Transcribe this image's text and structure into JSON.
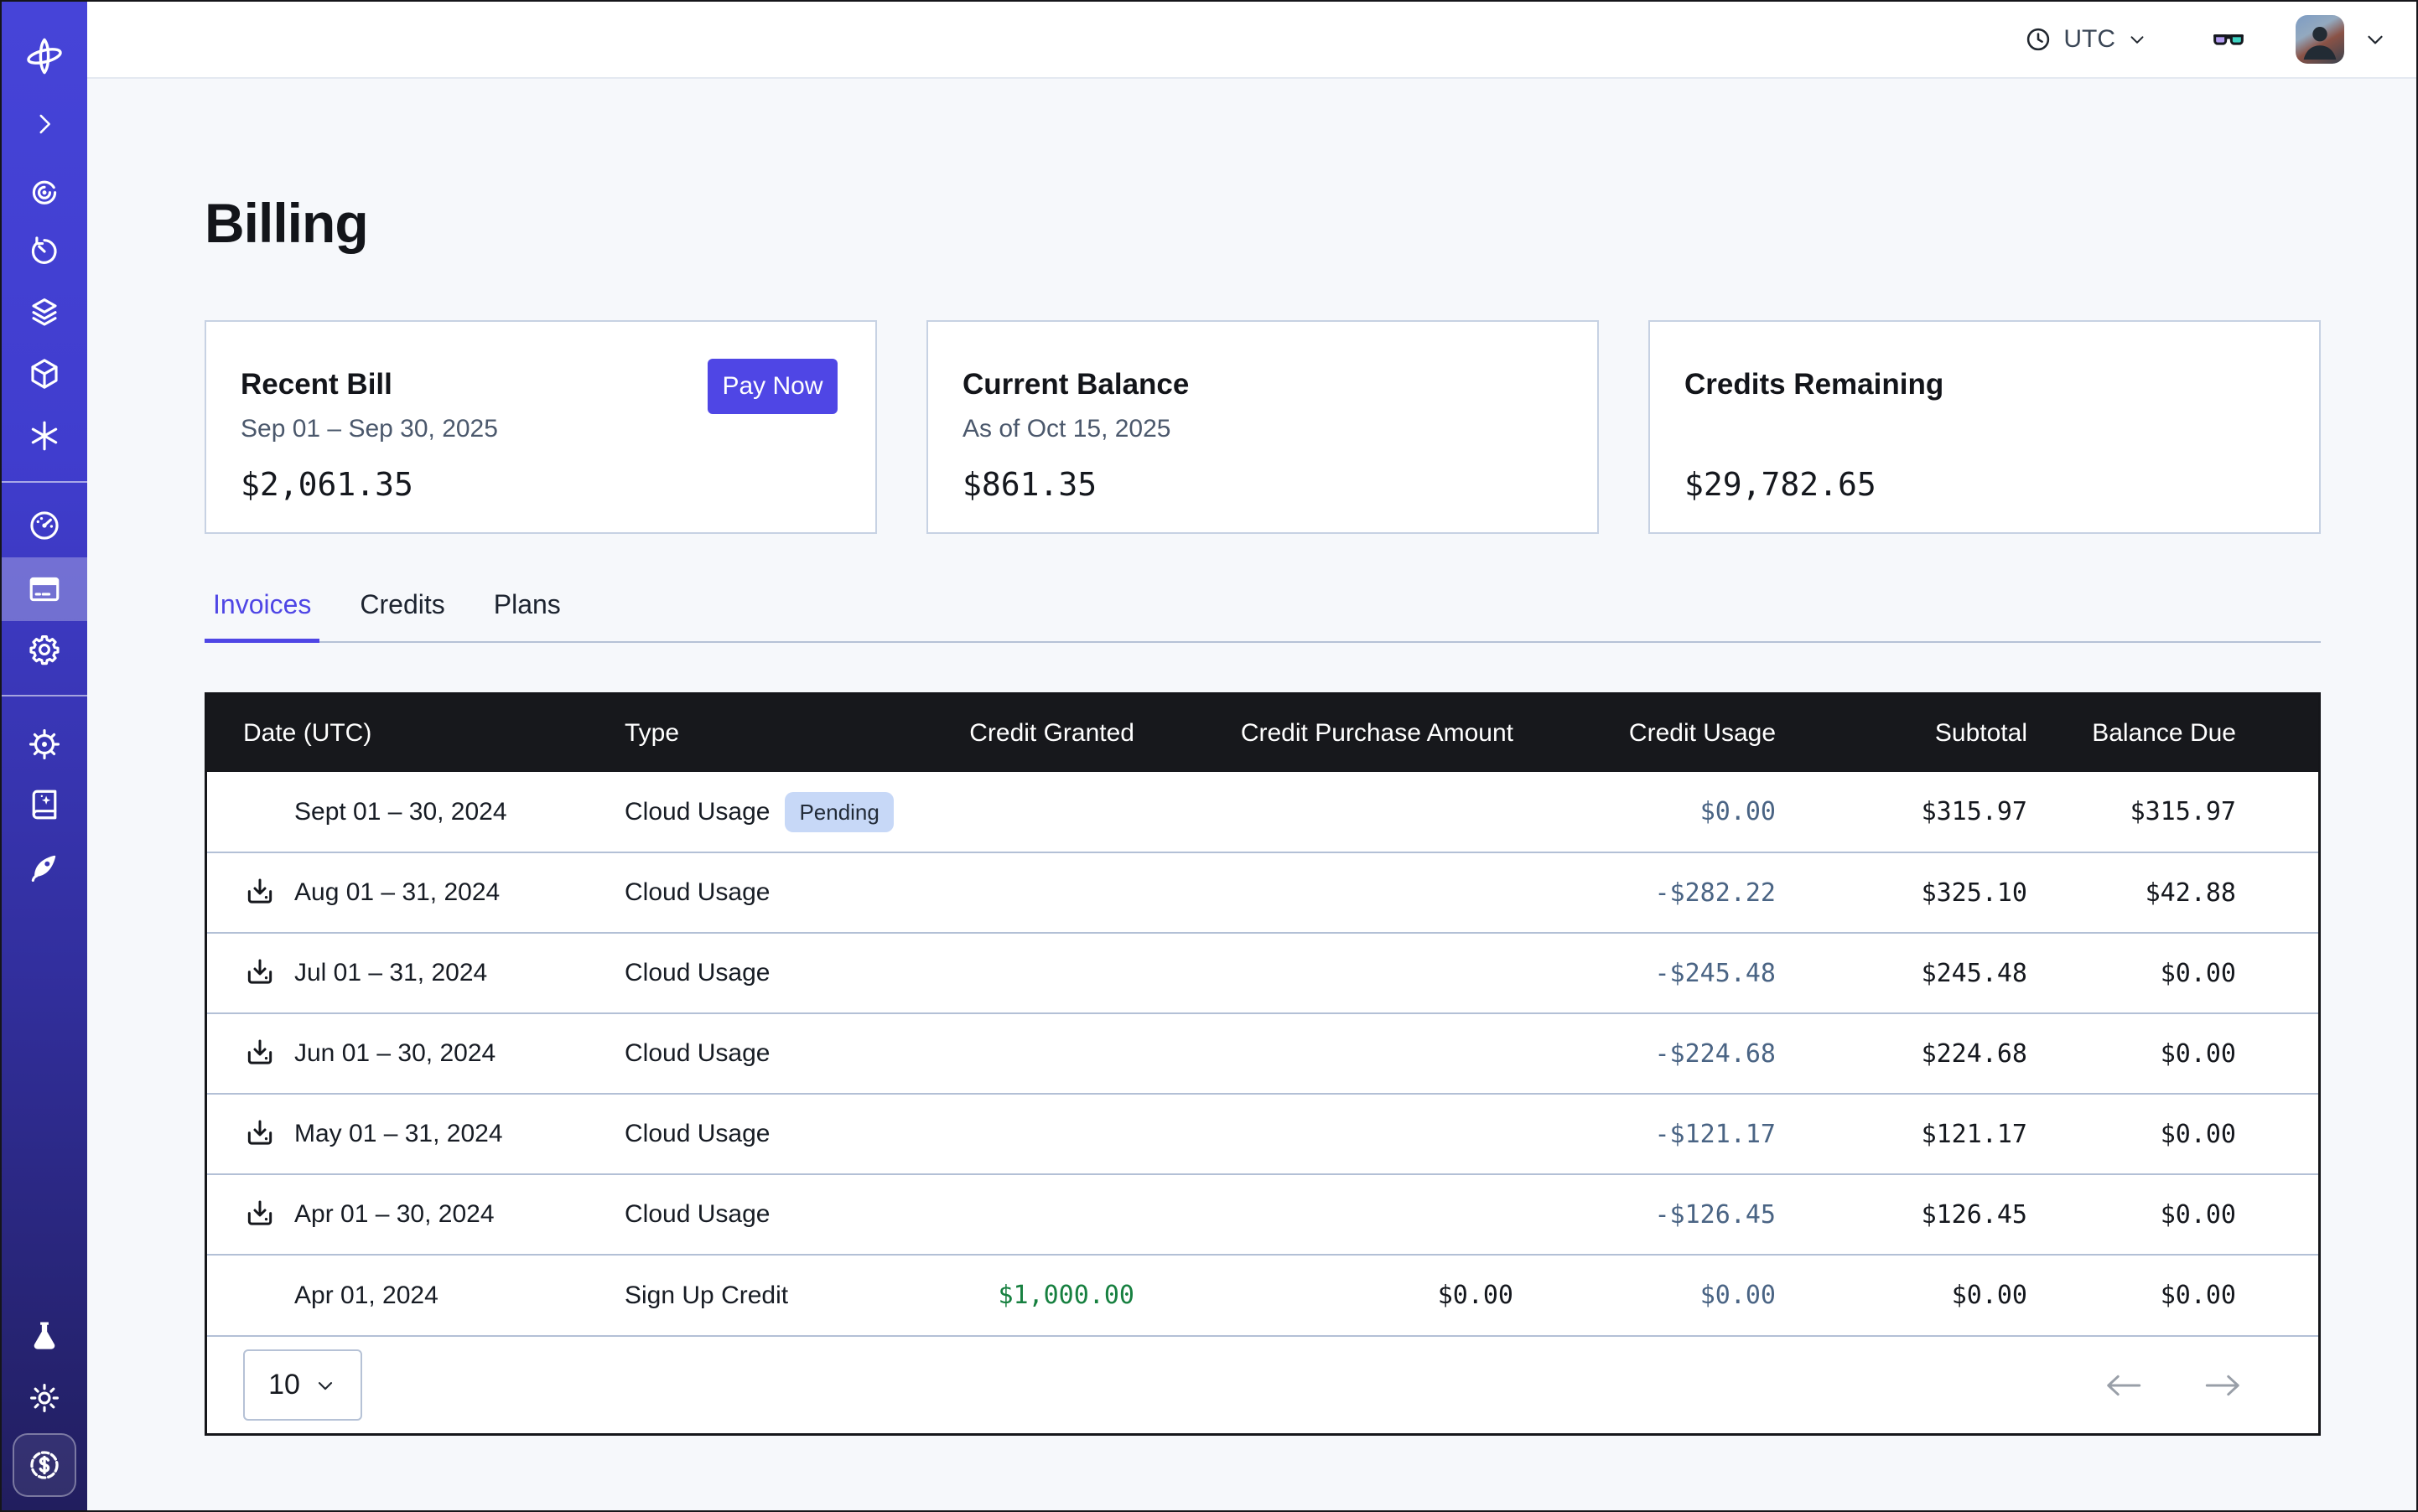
{
  "topbar": {
    "timezone": "UTC",
    "icons": [
      "clock-icon",
      "chevron-down-icon",
      "glasses-icon",
      "avatar",
      "chevron-down-icon"
    ]
  },
  "sidebar": {
    "icons": [
      "logo-orbit-icon",
      "chevron-right-icon",
      "eye-spiral-icon",
      "history-icon",
      "stack-icon",
      "cube-icon",
      "asterisk-icon",
      "gauge-icon",
      "credit-card-icon",
      "gear-icon",
      "helm-icon",
      "book-sparkle-icon",
      "rocket-icon",
      "flask-icon",
      "sun-icon",
      "seal-dollar-icon"
    ],
    "active_item": "credit-card"
  },
  "page": {
    "title": "Billing"
  },
  "cards": [
    {
      "title": "Recent Bill",
      "subtitle": "Sep 01 – Sep 30, 2025",
      "amount": "$2,061.35",
      "action_label": "Pay Now"
    },
    {
      "title": "Current Balance",
      "subtitle": "As of Oct 15, 2025",
      "amount": "$861.35"
    },
    {
      "title": "Credits Remaining",
      "subtitle": "",
      "amount": "$29,782.65"
    }
  ],
  "tabs": [
    "Invoices",
    "Credits",
    "Plans"
  ],
  "active_tab": "Invoices",
  "table": {
    "headers": [
      "Date (UTC)",
      "Type",
      "Credit Granted",
      "Credit Purchase Amount",
      "Credit Usage",
      "Subtotal",
      "Balance Due"
    ],
    "rows": [
      {
        "download": false,
        "date": "Sept 01 – 30, 2024",
        "type": "Cloud Usage",
        "badge": "Pending",
        "granted": "",
        "purchase": "",
        "usage": "$0.00",
        "subtotal": "$315.97",
        "due": "$315.97"
      },
      {
        "download": true,
        "date": "Aug 01 – 31, 2024",
        "type": "Cloud Usage",
        "badge": null,
        "granted": "",
        "purchase": "",
        "usage": "-$282.22",
        "subtotal": "$325.10",
        "due": "$42.88"
      },
      {
        "download": true,
        "date": "Jul 01 – 31, 2024",
        "type": "Cloud Usage",
        "badge": null,
        "granted": "",
        "purchase": "",
        "usage": "-$245.48",
        "subtotal": "$245.48",
        "due": "$0.00"
      },
      {
        "download": true,
        "date": "Jun 01 – 30, 2024",
        "type": "Cloud Usage",
        "badge": null,
        "granted": "",
        "purchase": "",
        "usage": "-$224.68",
        "subtotal": "$224.68",
        "due": "$0.00"
      },
      {
        "download": true,
        "date": "May 01 – 31, 2024",
        "type": "Cloud Usage",
        "badge": null,
        "granted": "",
        "purchase": "",
        "usage": "-$121.17",
        "subtotal": "$121.17",
        "due": "$0.00"
      },
      {
        "download": true,
        "date": "Apr 01 – 30, 2024",
        "type": "Cloud Usage",
        "badge": null,
        "granted": "",
        "purchase": "",
        "usage": "-$126.45",
        "subtotal": "$126.45",
        "due": "$0.00"
      },
      {
        "download": false,
        "date": "Apr 01, 2024",
        "type": "Sign Up Credit",
        "badge": null,
        "granted": "$1,000.00",
        "granted_highlight": true,
        "purchase": "$0.00",
        "usage": "$0.00",
        "subtotal": "$0.00",
        "due": "$0.00"
      }
    ]
  },
  "pagination": {
    "page_size": "10"
  },
  "colors": {
    "accent": "#4f46e5",
    "sidebar_top": "#4644d8",
    "sidebar_bottom": "#211e5e",
    "table_header_bg": "#17181c",
    "pending_badge_bg": "#c7d8f7",
    "credit_usage_text": "#4a6484",
    "credit_granted_green": "#178040",
    "row_divider": "#b3c0d6"
  }
}
